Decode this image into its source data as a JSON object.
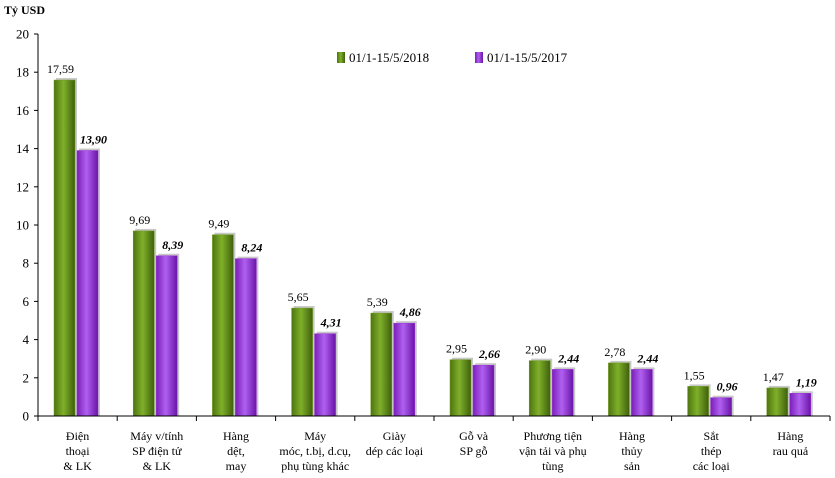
{
  "chart_data": {
    "type": "bar",
    "ylabel": "Tỷ USD",
    "ylim": [
      0,
      20
    ],
    "yticks": [
      "0",
      "2",
      "4",
      "6",
      "8",
      "10",
      "12",
      "14",
      "16",
      "18",
      "20"
    ],
    "grid": false,
    "legend_position": "top-right",
    "categories": [
      [
        "Điện",
        "thoại",
        "& LK"
      ],
      [
        "Máy v/tính",
        "SP điện tử",
        "& LK"
      ],
      [
        "Hàng",
        "dệt,",
        "may"
      ],
      [
        "Máy",
        "móc, t.bị, d.cụ,",
        "phụ tùng khác"
      ],
      [
        "Giày",
        "dép các loại"
      ],
      [
        "Gỗ và",
        "SP gỗ"
      ],
      [
        "Phương tiện",
        "vận tải và phụ",
        "tùng"
      ],
      [
        "Hàng",
        "thủy",
        "sản"
      ],
      [
        "Sắt",
        "thép",
        "các loại"
      ],
      [
        "Hàng",
        "rau quả"
      ]
    ],
    "series": [
      {
        "name": "01/1-15/5/2018",
        "color": "#6E9A1F",
        "values": [
          17.59,
          9.69,
          9.49,
          5.65,
          5.39,
          2.95,
          2.9,
          2.78,
          1.55,
          1.47
        ],
        "labels": [
          "17,59",
          "9,69",
          "9,49",
          "5,65",
          "5,39",
          "2,95",
          "2,90",
          "2,78",
          "1,55",
          "1,47"
        ]
      },
      {
        "name": "01/1-15/5/2017",
        "color": "#9B2FD9",
        "values": [
          13.9,
          8.39,
          8.24,
          4.31,
          4.86,
          2.66,
          2.44,
          2.44,
          0.96,
          1.19
        ],
        "labels": [
          "13,90",
          "8,39",
          "8,24",
          "4,31",
          "4,86",
          "2,66",
          "2,44",
          "2,44",
          "0,96",
          "1,19"
        ]
      }
    ]
  }
}
